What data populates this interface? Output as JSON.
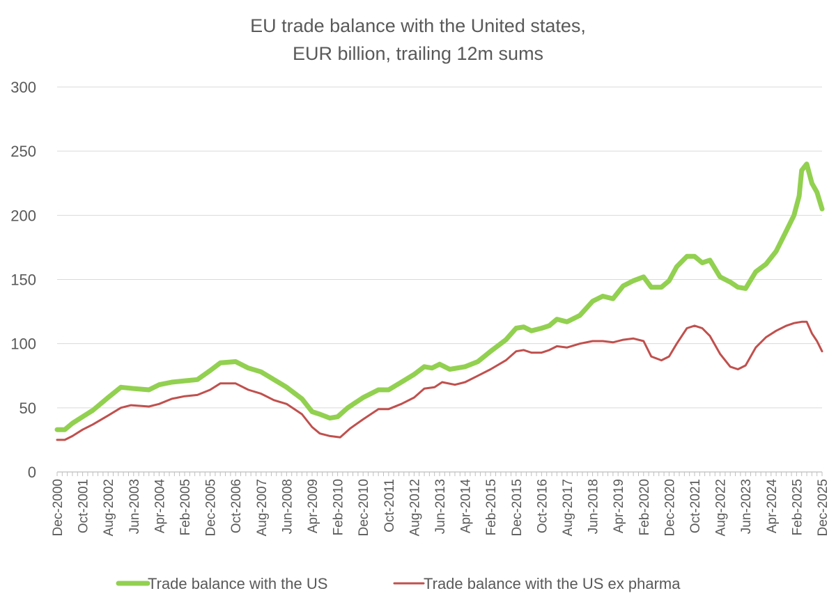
{
  "chart_data": {
    "type": "line",
    "title": "EU trade balance with the United states,",
    "subtitle": "EUR  billion, trailing 12m sums",
    "xlabel": "",
    "ylabel": "",
    "ylim": [
      0,
      300
    ],
    "y_ticks": [
      0,
      50,
      100,
      150,
      200,
      250,
      300
    ],
    "x_start": "Dec-2000",
    "x_end": "Dec-2025",
    "x_tick_labels": [
      "Dec-2000",
      "Oct-2001",
      "Aug-2002",
      "Jun-2003",
      "Apr-2004",
      "Feb-2005",
      "Dec-2005",
      "Oct-2006",
      "Aug-2007",
      "Jun-2008",
      "Apr-2009",
      "Feb-2010",
      "Dec-2010",
      "Oct-2011",
      "Aug-2012",
      "Jun-2013",
      "Apr-2014",
      "Feb-2015",
      "Dec-2015",
      "Oct-2016",
      "Aug-2017",
      "Jun-2018",
      "Apr-2019",
      "Feb-2020",
      "Dec-2020",
      "Oct-2021",
      "Aug-2022",
      "Jun-2023",
      "Apr-2024",
      "Feb-2025",
      "Dec-2025"
    ],
    "grid": true,
    "legend_position": "bottom",
    "series": [
      {
        "name": "Trade balance with the US",
        "color": "#92D050",
        "points": [
          [
            "2000-12",
            33
          ],
          [
            "2001-03",
            33
          ],
          [
            "2001-06",
            38
          ],
          [
            "2001-10",
            43
          ],
          [
            "2002-02",
            48
          ],
          [
            "2002-08",
            58
          ],
          [
            "2003-01",
            66
          ],
          [
            "2003-06",
            65
          ],
          [
            "2003-12",
            64
          ],
          [
            "2004-04",
            68
          ],
          [
            "2004-09",
            70
          ],
          [
            "2005-02",
            71
          ],
          [
            "2005-07",
            72
          ],
          [
            "2005-12",
            79
          ],
          [
            "2006-04",
            85
          ],
          [
            "2006-10",
            86
          ],
          [
            "2007-03",
            81
          ],
          [
            "2007-08",
            78
          ],
          [
            "2008-01",
            72
          ],
          [
            "2008-06",
            66
          ],
          [
            "2008-12",
            57
          ],
          [
            "2009-04",
            47
          ],
          [
            "2009-07",
            45
          ],
          [
            "2009-11",
            42
          ],
          [
            "2010-02",
            43
          ],
          [
            "2010-06",
            50
          ],
          [
            "2010-12",
            58
          ],
          [
            "2011-06",
            64
          ],
          [
            "2011-10",
            64
          ],
          [
            "2012-03",
            70
          ],
          [
            "2012-08",
            76
          ],
          [
            "2012-12",
            82
          ],
          [
            "2013-03",
            81
          ],
          [
            "2013-06",
            84
          ],
          [
            "2013-10",
            80
          ],
          [
            "2014-04",
            82
          ],
          [
            "2014-09",
            86
          ],
          [
            "2015-02",
            94
          ],
          [
            "2015-08",
            103
          ],
          [
            "2015-12",
            112
          ],
          [
            "2016-03",
            113
          ],
          [
            "2016-06",
            110
          ],
          [
            "2016-10",
            112
          ],
          [
            "2017-01",
            114
          ],
          [
            "2017-04",
            119
          ],
          [
            "2017-08",
            117
          ],
          [
            "2018-01",
            122
          ],
          [
            "2018-06",
            133
          ],
          [
            "2018-10",
            137
          ],
          [
            "2019-02",
            135
          ],
          [
            "2019-06",
            145
          ],
          [
            "2019-10",
            149
          ],
          [
            "2020-02",
            152
          ],
          [
            "2020-05",
            144
          ],
          [
            "2020-09",
            144
          ],
          [
            "2020-12",
            149
          ],
          [
            "2021-03",
            160
          ],
          [
            "2021-07",
            168
          ],
          [
            "2021-10",
            168
          ],
          [
            "2022-01",
            163
          ],
          [
            "2022-04",
            165
          ],
          [
            "2022-08",
            152
          ],
          [
            "2022-12",
            148
          ],
          [
            "2023-03",
            144
          ],
          [
            "2023-06",
            143
          ],
          [
            "2023-10",
            156
          ],
          [
            "2024-02",
            162
          ],
          [
            "2024-06",
            172
          ],
          [
            "2024-10",
            188
          ],
          [
            "2025-01",
            200
          ],
          [
            "2025-03",
            215
          ],
          [
            "2025-04",
            235
          ],
          [
            "2025-06",
            240
          ],
          [
            "2025-08",
            225
          ],
          [
            "2025-10",
            218
          ],
          [
            "2025-12",
            205
          ]
        ]
      },
      {
        "name": "Trade balance with the US ex pharma",
        "color": "#C0504D",
        "points": [
          [
            "2000-12",
            25
          ],
          [
            "2001-03",
            25
          ],
          [
            "2001-06",
            28
          ],
          [
            "2001-10",
            33
          ],
          [
            "2002-02",
            37
          ],
          [
            "2002-08",
            44
          ],
          [
            "2003-01",
            50
          ],
          [
            "2003-05",
            52
          ],
          [
            "2003-12",
            51
          ],
          [
            "2004-04",
            53
          ],
          [
            "2004-09",
            57
          ],
          [
            "2005-02",
            59
          ],
          [
            "2005-07",
            60
          ],
          [
            "2005-12",
            64
          ],
          [
            "2006-04",
            69
          ],
          [
            "2006-10",
            69
          ],
          [
            "2007-03",
            64
          ],
          [
            "2007-08",
            61
          ],
          [
            "2008-01",
            56
          ],
          [
            "2008-06",
            53
          ],
          [
            "2008-12",
            45
          ],
          [
            "2009-04",
            35
          ],
          [
            "2009-07",
            30
          ],
          [
            "2009-11",
            28
          ],
          [
            "2010-03",
            27
          ],
          [
            "2010-07",
            34
          ],
          [
            "2010-12",
            41
          ],
          [
            "2011-06",
            49
          ],
          [
            "2011-10",
            49
          ],
          [
            "2012-03",
            53
          ],
          [
            "2012-08",
            58
          ],
          [
            "2012-12",
            65
          ],
          [
            "2013-04",
            66
          ],
          [
            "2013-07",
            70
          ],
          [
            "2013-12",
            68
          ],
          [
            "2014-04",
            70
          ],
          [
            "2014-09",
            75
          ],
          [
            "2015-02",
            80
          ],
          [
            "2015-08",
            87
          ],
          [
            "2015-12",
            94
          ],
          [
            "2016-03",
            95
          ],
          [
            "2016-06",
            93
          ],
          [
            "2016-10",
            93
          ],
          [
            "2017-01",
            95
          ],
          [
            "2017-04",
            98
          ],
          [
            "2017-08",
            97
          ],
          [
            "2018-01",
            100
          ],
          [
            "2018-06",
            102
          ],
          [
            "2018-10",
            102
          ],
          [
            "2019-02",
            101
          ],
          [
            "2019-06",
            103
          ],
          [
            "2019-10",
            104
          ],
          [
            "2020-02",
            102
          ],
          [
            "2020-05",
            90
          ],
          [
            "2020-09",
            87
          ],
          [
            "2020-12",
            90
          ],
          [
            "2021-03",
            100
          ],
          [
            "2021-07",
            112
          ],
          [
            "2021-10",
            114
          ],
          [
            "2022-01",
            112
          ],
          [
            "2022-04",
            106
          ],
          [
            "2022-08",
            92
          ],
          [
            "2022-12",
            82
          ],
          [
            "2023-03",
            80
          ],
          [
            "2023-06",
            83
          ],
          [
            "2023-10",
            97
          ],
          [
            "2024-02",
            105
          ],
          [
            "2024-06",
            110
          ],
          [
            "2024-10",
            114
          ],
          [
            "2025-01",
            116
          ],
          [
            "2025-04",
            117
          ],
          [
            "2025-06",
            117
          ],
          [
            "2025-08",
            108
          ],
          [
            "2025-10",
            102
          ],
          [
            "2025-12",
            94
          ]
        ]
      }
    ]
  }
}
